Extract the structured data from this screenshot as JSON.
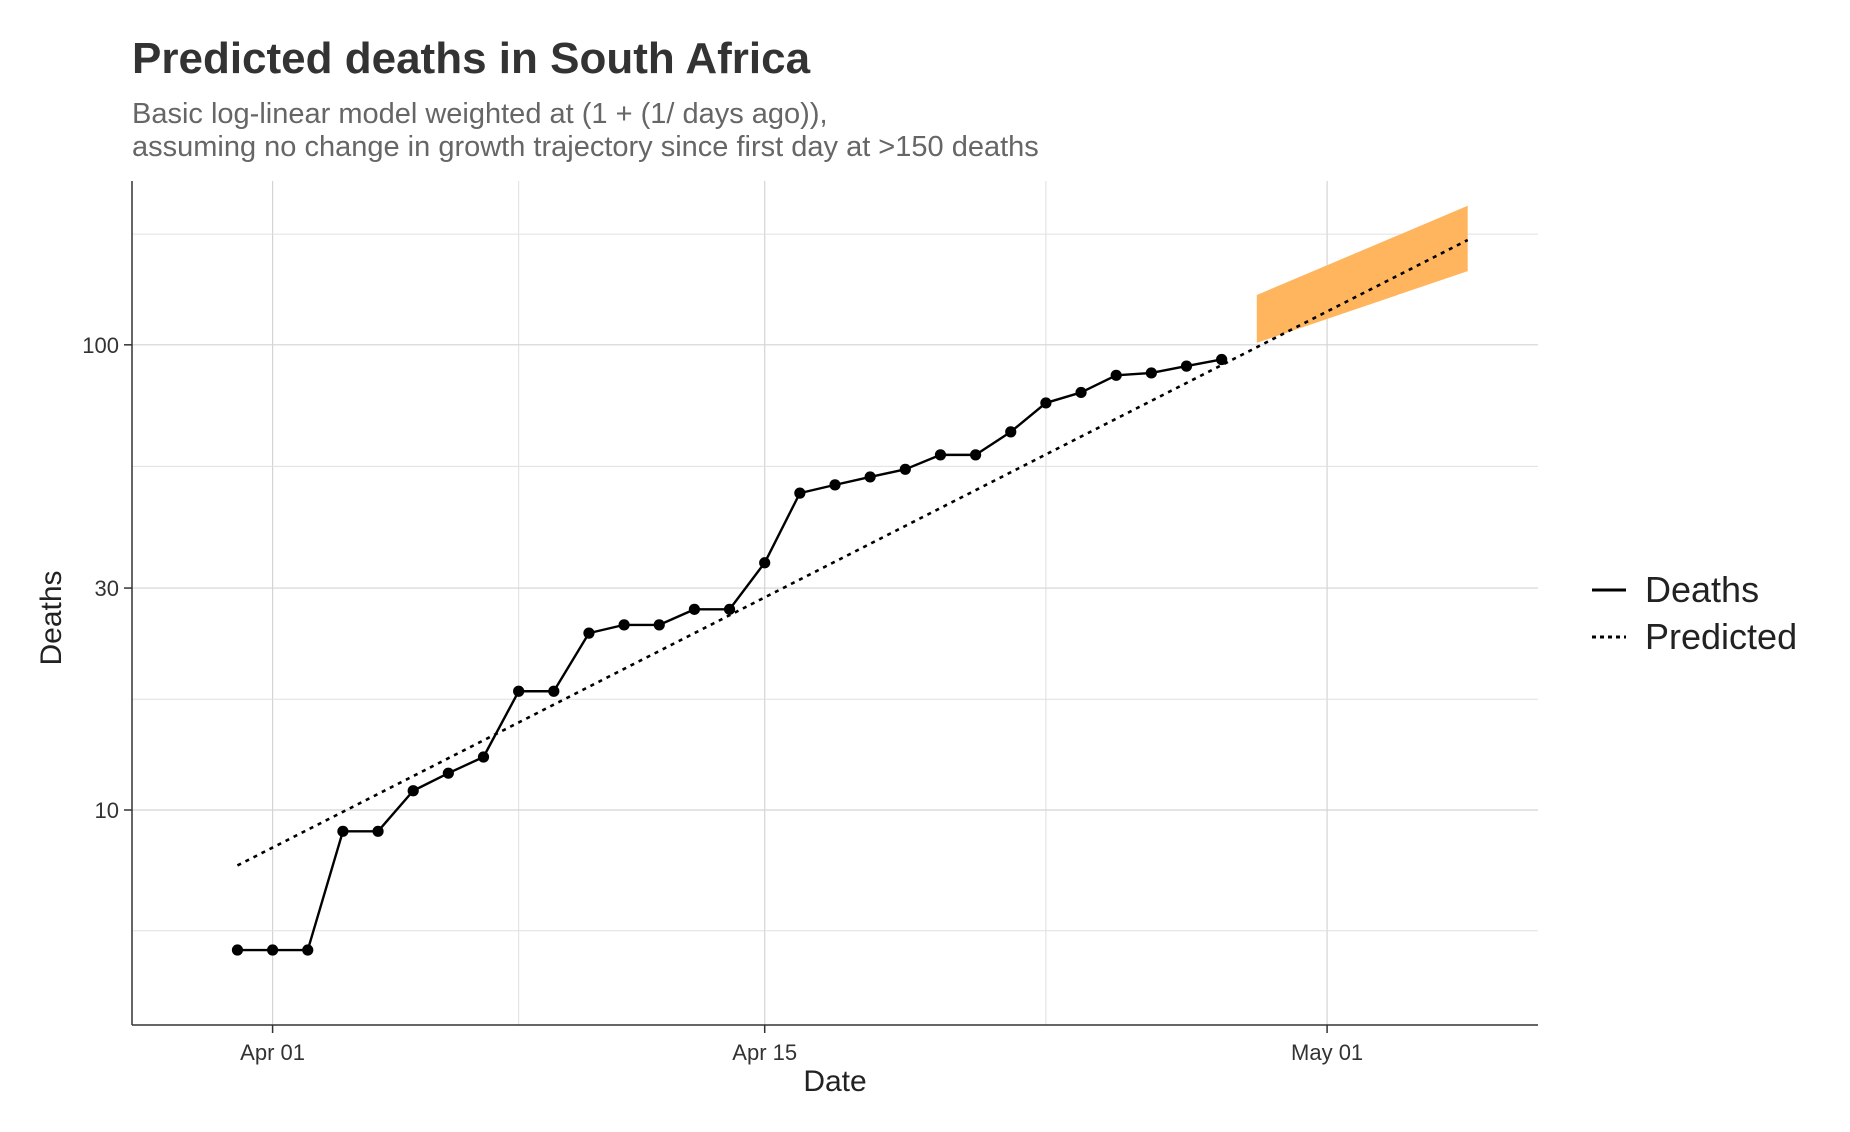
{
  "chart_data": {
    "type": "line",
    "title": "Predicted deaths in South Africa",
    "subtitle_lines": [
      "Basic log-linear model weighted at (1 + (1/ days ago)),",
      "assuming no change in growth trajectory since first day at >150 deaths"
    ],
    "xlabel": "Date",
    "ylabel": "Deaths",
    "x_scale": "date",
    "y_scale": "log10",
    "xlim": [
      "2020-03-28",
      "2020-05-07"
    ],
    "ylim": [
      3.45,
      225
    ],
    "x_ticks": [
      {
        "date": "2020-04-01",
        "label": "Apr 01"
      },
      {
        "date": "2020-04-15",
        "label": "Apr 15"
      },
      {
        "date": "2020-05-01",
        "label": "May 01"
      }
    ],
    "x_minor_gridlines": [
      "2020-04-08",
      "2020-04-23"
    ],
    "y_ticks": [
      {
        "value": 10,
        "label": "10"
      },
      {
        "value": 30,
        "label": "30"
      },
      {
        "value": 100,
        "label": "100"
      }
    ],
    "y_minor_gridlines": [
      5.5,
      17.3,
      54.8,
      173
    ],
    "grid": true,
    "legend_position": "right",
    "series": [
      {
        "name": "Deaths",
        "style": "solid",
        "markers": true,
        "color": "#000000",
        "points": [
          {
            "x": "2020-03-31",
            "y": 5
          },
          {
            "x": "2020-04-01",
            "y": 5
          },
          {
            "x": "2020-04-02",
            "y": 5
          },
          {
            "x": "2020-04-03",
            "y": 9
          },
          {
            "x": "2020-04-04",
            "y": 9
          },
          {
            "x": "2020-04-05",
            "y": 11
          },
          {
            "x": "2020-04-06",
            "y": 12
          },
          {
            "x": "2020-04-07",
            "y": 13
          },
          {
            "x": "2020-04-08",
            "y": 18
          },
          {
            "x": "2020-04-09",
            "y": 18
          },
          {
            "x": "2020-04-10",
            "y": 24
          },
          {
            "x": "2020-04-11",
            "y": 25
          },
          {
            "x": "2020-04-12",
            "y": 25
          },
          {
            "x": "2020-04-13",
            "y": 27
          },
          {
            "x": "2020-04-14",
            "y": 27
          },
          {
            "x": "2020-04-15",
            "y": 34
          },
          {
            "x": "2020-04-16",
            "y": 48
          },
          {
            "x": "2020-04-17",
            "y": 50
          },
          {
            "x": "2020-04-18",
            "y": 52
          },
          {
            "x": "2020-04-19",
            "y": 54
          },
          {
            "x": "2020-04-20",
            "y": 58
          },
          {
            "x": "2020-04-21",
            "y": 58
          },
          {
            "x": "2020-04-22",
            "y": 65
          },
          {
            "x": "2020-04-23",
            "y": 75
          },
          {
            "x": "2020-04-24",
            "y": 79
          },
          {
            "x": "2020-04-25",
            "y": 86
          },
          {
            "x": "2020-04-26",
            "y": 87
          },
          {
            "x": "2020-04-27",
            "y": 90
          },
          {
            "x": "2020-04-28",
            "y": 93
          }
        ]
      },
      {
        "name": "Predicted",
        "style": "dotted",
        "color": "#000000",
        "points": [
          {
            "x": "2020-03-31",
            "y": 7.6
          },
          {
            "x": "2020-05-05",
            "y": 168
          }
        ]
      }
    ],
    "prediction_band": {
      "color": "#ffb55e",
      "points": [
        {
          "x": "2020-04-29",
          "lower": 101,
          "upper": 128
        },
        {
          "x": "2020-05-05",
          "lower": 144,
          "upper": 199
        }
      ]
    }
  }
}
